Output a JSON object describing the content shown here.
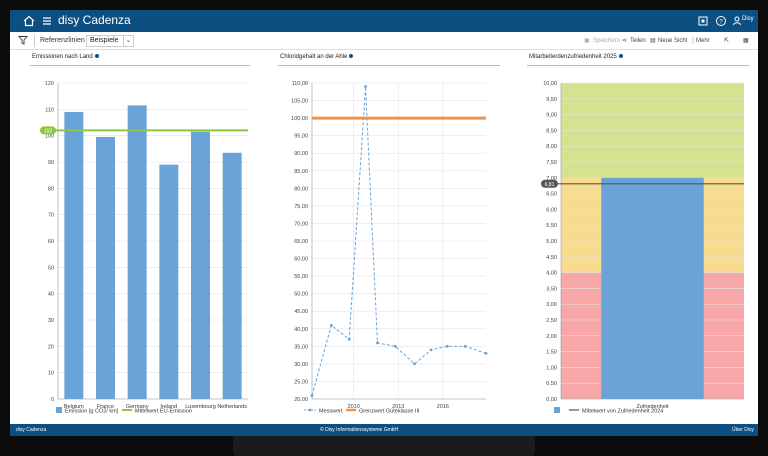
{
  "header": {
    "app_title": "disy Cadenza",
    "user_label": "Disy",
    "icons": [
      "home-icon",
      "menu-icon",
      "embed-icon",
      "help-icon",
      "user-icon"
    ]
  },
  "toolbar": {
    "filter_icon": "filter-icon",
    "tab_label": "Referenzlinien",
    "select_value": "Beispiele",
    "save_label": "Speichern",
    "share_label": "Teilen",
    "new_view_label": "Neue Sicht",
    "more_label": "Mehr"
  },
  "panels": {
    "left_title": "Emissionen nach Land",
    "middle_title": "Chloridgehalt an der Ahle",
    "right_title": "Mitarbeiterdenzufriedenheit 2025"
  },
  "footer": {
    "left": "disy Cadenza",
    "center": "© Disy Informationssysteme GmbH",
    "right": "Über Disy"
  },
  "colors": {
    "brand": "#0e4f82",
    "bar": "#6aa3d8",
    "ref_green": "#8cc63f",
    "ref_orange": "#f0924a",
    "band_green": "#d4e38f",
    "band_yellow": "#f7dc8f",
    "band_red": "#f7a7a7",
    "ref_dark": "#555555"
  },
  "chart_data": [
    {
      "type": "bar",
      "title": "Emissionen nach Land",
      "categories": [
        "Belgium",
        "France",
        "Germany",
        "Ireland",
        "Luxembourg",
        "Netherlands"
      ],
      "series": [
        {
          "name": "Emission [g CO2/ km]",
          "values": [
            109,
            99.5,
            111.5,
            89,
            101.5,
            93.5
          ]
        }
      ],
      "reference_line": {
        "name": "Mittelwert EU-Emission",
        "value": 102,
        "label": "102"
      },
      "ylim": [
        0,
        120
      ],
      "yticks": [
        "0",
        "10",
        "20",
        "30",
        "40",
        "50",
        "60",
        "70",
        "80",
        "90",
        "100",
        "110",
        "120"
      ],
      "grid": true,
      "legend": "bottom"
    },
    {
      "type": "line",
      "title": "Chloridgehalt an der Ahle",
      "x": [
        2007.2,
        2008.5,
        2009.7,
        2010.8,
        2011.6,
        2012.8,
        2014.1,
        2015.2,
        2016.3,
        2017.5,
        2018.9
      ],
      "series": [
        {
          "name": "Messwert",
          "values": [
            21,
            41,
            37,
            109,
            36,
            35,
            30,
            34,
            35,
            35,
            33
          ]
        }
      ],
      "reference_line": {
        "name": "Grenzwert Güteklasse III",
        "value": 100
      },
      "xticks": [
        "2010",
        "2013",
        "2016"
      ],
      "ylim": [
        20,
        110
      ],
      "yticks": [
        "20,00",
        "25,00",
        "30,00",
        "35,00",
        "40,00",
        "45,00",
        "50,00",
        "55,00",
        "60,00",
        "65,00",
        "70,00",
        "75,00",
        "80,00",
        "85,00",
        "90,00",
        "95,00",
        "100,00",
        "105,00",
        "110,00"
      ],
      "grid": true,
      "legend": "bottom"
    },
    {
      "type": "bar",
      "title": "Mitarbeiterdenzufriedenheit 2025",
      "categories": [
        "Zufriedenheit"
      ],
      "series": [
        {
          "values": [
            7.0
          ]
        }
      ],
      "bands": [
        {
          "from": 0,
          "to": 4,
          "color": "red"
        },
        {
          "from": 4,
          "to": 7,
          "color": "yellow"
        },
        {
          "from": 7,
          "to": 10,
          "color": "green"
        }
      ],
      "reference_line": {
        "name": "Mittelwert von Zufriedenheit 2024",
        "value": 6.81,
        "label": "6,81"
      },
      "ylim": [
        0,
        10
      ],
      "yticks": [
        "0,00",
        "0,50",
        "1,00",
        "1,50",
        "2,00",
        "2,50",
        "3,00",
        "3,50",
        "4,00",
        "4,50",
        "5,00",
        "5,50",
        "6,00",
        "6,50",
        "7,00",
        "7,50",
        "8,00",
        "8,50",
        "9,00",
        "9,50",
        "10,00"
      ],
      "grid": true,
      "legend": "bottom"
    }
  ]
}
